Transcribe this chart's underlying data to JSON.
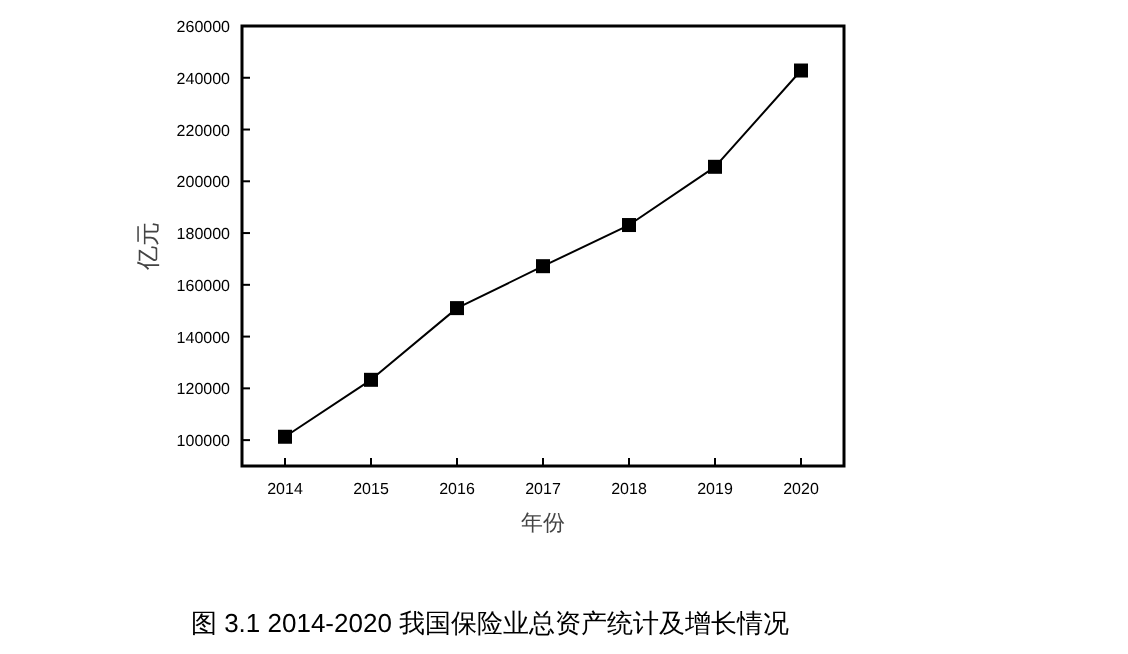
{
  "chart_data": {
    "type": "line",
    "xlabel": "年份",
    "ylabel": "亿元",
    "x": [
      2014,
      2015,
      2016,
      2017,
      2018,
      2019,
      2020
    ],
    "series": [
      {
        "color": "#000000",
        "values": [
          101300,
          123300,
          151000,
          167200,
          183100,
          205600,
          242800
        ]
      }
    ],
    "xlim": [
      2013.5,
      2020.5
    ],
    "xticks": [
      2014,
      2015,
      2016,
      2017,
      2018,
      2019,
      2020
    ],
    "ylim": [
      90000,
      260000
    ],
    "yticks": [
      100000,
      120000,
      140000,
      160000,
      180000,
      200000,
      220000,
      240000,
      260000
    ],
    "marker": "square",
    "grid": false,
    "annotations": [
      "图 3.1 2014-2020 我国保险业总资产统计及增长情况"
    ]
  }
}
